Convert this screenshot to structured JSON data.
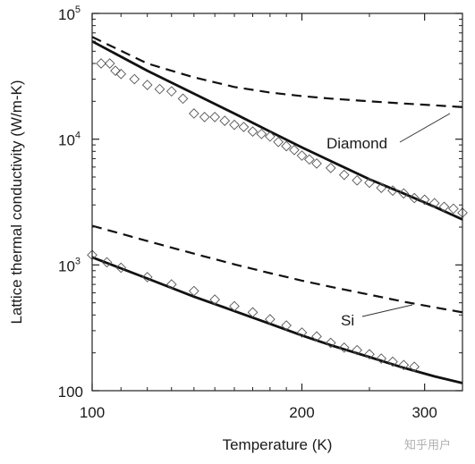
{
  "chart_data": {
    "type": "line",
    "xlabel": "Temperature (K)",
    "ylabel": "Lattice thermal conductivity (W/m-K)",
    "x_scale": "log",
    "y_scale": "log",
    "xlim": [
      100,
      340
    ],
    "ylim": [
      100,
      100000
    ],
    "x_ticks": [
      {
        "value": 100,
        "label": "100"
      },
      {
        "value": 200,
        "label": "200"
      },
      {
        "value": 300,
        "label": "300"
      }
    ],
    "y_ticks": [
      {
        "value": 100,
        "base": "100",
        "exp": ""
      },
      {
        "value": 1000,
        "base": "10",
        "exp": "3"
      },
      {
        "value": 10000,
        "base": "10",
        "exp": "4"
      },
      {
        "value": 100000,
        "base": "10",
        "exp": "5"
      }
    ],
    "grid": false,
    "legend": "none",
    "annotations": [
      {
        "text": "Diamond",
        "point": [
          330,
          18000
        ],
        "label_at": [
          200,
          9500
        ]
      },
      {
        "text": "Si",
        "point": [
          300,
          510
        ],
        "label_at": [
          200,
          300
        ]
      }
    ],
    "series": [
      {
        "style": "solid",
        "material": "diamond",
        "x": [
          100,
          120,
          140,
          160,
          180,
          200,
          220,
          250,
          280,
          310,
          340
        ],
        "y": [
          60000,
          35000,
          23000,
          16000,
          11500,
          8600,
          6700,
          4800,
          3700,
          2900,
          2300
        ]
      },
      {
        "style": "dashed",
        "material": "diamond",
        "x": [
          100,
          120,
          140,
          160,
          180,
          200,
          220,
          250,
          280,
          310,
          340
        ],
        "y": [
          65000,
          40000,
          31000,
          26000,
          23500,
          22000,
          21000,
          20000,
          19200,
          18600,
          18000
        ]
      },
      {
        "style": "markers",
        "marker": "diamond",
        "material": "diamond",
        "x": [
          103,
          106,
          108,
          110,
          115,
          120,
          125,
          130,
          135,
          140,
          145,
          150,
          155,
          160,
          165,
          170,
          175,
          180,
          185,
          190,
          195,
          200,
          205,
          210,
          220,
          230,
          240,
          250,
          260,
          270,
          280,
          290,
          300,
          310,
          320,
          330,
          340
        ],
        "y": [
          40000,
          40000,
          35000,
          33000,
          30000,
          27000,
          25000,
          24000,
          21000,
          16000,
          15000,
          15000,
          14000,
          13000,
          12500,
          11500,
          11000,
          10500,
          9500,
          8800,
          8200,
          7400,
          6900,
          6400,
          5900,
          5200,
          4700,
          4500,
          4100,
          3900,
          3700,
          3400,
          3300,
          3100,
          2900,
          2800,
          2600
        ]
      },
      {
        "style": "solid",
        "material": "Si",
        "x": [
          100,
          120,
          140,
          160,
          180,
          200,
          220,
          250,
          280,
          310,
          340
        ],
        "y": [
          1150,
          780,
          560,
          430,
          340,
          275,
          230,
          185,
          152,
          130,
          115
        ]
      },
      {
        "style": "dashed",
        "material": "Si",
        "x": [
          100,
          120,
          140,
          160,
          180,
          200,
          220,
          250,
          280,
          310,
          340
        ],
        "y": [
          2050,
          1550,
          1230,
          1010,
          860,
          750,
          670,
          580,
          510,
          460,
          420
        ]
      },
      {
        "style": "markers",
        "marker": "diamond",
        "material": "Si",
        "x": [
          100,
          105,
          110,
          120,
          130,
          140,
          150,
          160,
          170,
          180,
          190,
          200,
          210,
          220,
          230,
          240,
          250,
          260,
          270,
          280,
          290
        ],
        "y": [
          1200,
          1050,
          950,
          800,
          700,
          620,
          530,
          470,
          420,
          370,
          330,
          290,
          270,
          240,
          220,
          210,
          195,
          180,
          170,
          160,
          155
        ]
      }
    ]
  },
  "watermark": "知乎用户"
}
